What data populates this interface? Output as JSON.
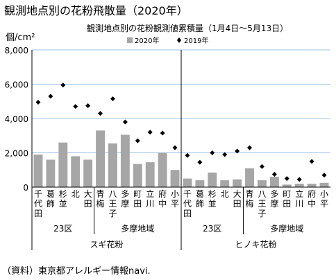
{
  "page_title": "観測地点別の花粉飛散量（2020年）",
  "source": "（資料）東京都アレルギー情報navi.",
  "chart_data": {
    "type": "bar",
    "title": "観測地点別の花粉観測値累積量（1月4日〜5月13日）",
    "ylabel": "個/cm²",
    "ylim": [
      0,
      8000
    ],
    "yticks": [
      "0",
      "2,000",
      "4,000",
      "6,000",
      "8,000"
    ],
    "grid": true,
    "legend_position": "top",
    "bar_color": "#a6a6a6",
    "marker_color": "#000000",
    "grid_color": "#9dc3e6",
    "series": [
      {
        "name": "2020年",
        "kind": "bar",
        "values": [
          1900,
          1600,
          2600,
          1800,
          1600,
          3300,
          2550,
          3050,
          1350,
          1450,
          2000,
          1000,
          500,
          400,
          850,
          400,
          450,
          1100,
          400,
          600,
          150,
          200,
          200,
          250
        ]
      },
      {
        "name": "2019年",
        "kind": "marker",
        "values": [
          4950,
          5300,
          5950,
          4700,
          4750,
          4300,
          5150,
          3800,
          2700,
          3200,
          3150,
          2300,
          1850,
          1450,
          2000,
          1900,
          2100,
          2300,
          1200,
          750,
          500,
          450,
          1500,
          700
        ]
      }
    ],
    "categories": [
      "千代田",
      "葛飾",
      "杉並",
      "北",
      "大田",
      "青梅",
      "八王子",
      "多摩",
      "町田",
      "立川",
      "府中",
      "小平",
      "千代田",
      "葛飾",
      "杉並",
      "北",
      "大田",
      "青梅",
      "八王子",
      "多摩",
      "町田",
      "立川",
      "府中",
      "小平"
    ],
    "region_groups": [
      {
        "label": "23区",
        "start": 0,
        "end": 4
      },
      {
        "label": "多摩地域",
        "start": 5,
        "end": 11
      },
      {
        "label": "23区",
        "start": 12,
        "end": 16
      },
      {
        "label": "多摩地域",
        "start": 17,
        "end": 23
      }
    ],
    "pollen_groups": [
      {
        "label": "スギ花粉",
        "start": 0,
        "end": 11
      },
      {
        "label": "ヒノキ花粉",
        "start": 12,
        "end": 23
      }
    ]
  }
}
